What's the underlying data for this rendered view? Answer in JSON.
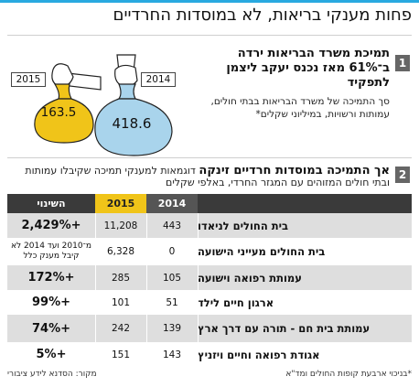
{
  "headline": "פחות מענקי בריאות, לא במוסדות החרדיים",
  "section1": {
    "number": "1",
    "title": "תמיכת משרד הבריאות ירדה ב־61% מאז נכנס יעקב ליצמן לתפקיד",
    "subtitle": "סך התמיכה של משרד הבריאות בבתי חולים, עמותות ורשויות, במיליוני שקלים*",
    "bags": [
      {
        "year": "2015",
        "value": "163.5",
        "color": "#f0c419"
      },
      {
        "year": "2014",
        "value": "418.6",
        "color": "#a9d4ec"
      }
    ]
  },
  "section2": {
    "number": "2",
    "title_bold": "אך התמיכה במוסדות חרדיים זינקה",
    "title_rest": " דוגמאות למענקי תמיכה שקיבלו עמותות ובתי חולים המזוהים עם המגזר החרדי, באלפי שקלים"
  },
  "table": {
    "headers": {
      "change": "השינוי",
      "y2015": "2015",
      "y2014": "2014",
      "name": ""
    },
    "rows": [
      {
        "name": "בית החולים לניאדו",
        "y2014": "443",
        "y2015": "11,208",
        "change": "+2,429%"
      },
      {
        "name": "בית החולים מעייני הישועה",
        "y2014": "0",
        "y2015": "6,328",
        "change": "מ־2010 ועד 2014 לא קיבל מענק כלל"
      },
      {
        "name": "עמותת רפואה וישועה",
        "y2014": "105",
        "y2015": "285",
        "change": "+172%"
      },
      {
        "name": "ארגון חיים לילד",
        "y2014": "51",
        "y2015": "101",
        "change": "+99%"
      },
      {
        "name": "עמותת בית חם - תורה עם דרך ארץ",
        "y2014": "139",
        "y2015": "242",
        "change": "+74%"
      },
      {
        "name": "אגודת רפואה וחיים ויזניץ",
        "y2014": "143",
        "y2015": "151",
        "change": "+5%"
      }
    ]
  },
  "footer": {
    "note": "*בניכוי ארבעת קופות החולים ומד\"א",
    "source": "מקור: הסדנא לידע ציבורי"
  },
  "colors": {
    "accent": "#29a9e0",
    "gold": "#f0c419",
    "lightblue": "#a9d4ec",
    "header": "#3a3a3a"
  }
}
